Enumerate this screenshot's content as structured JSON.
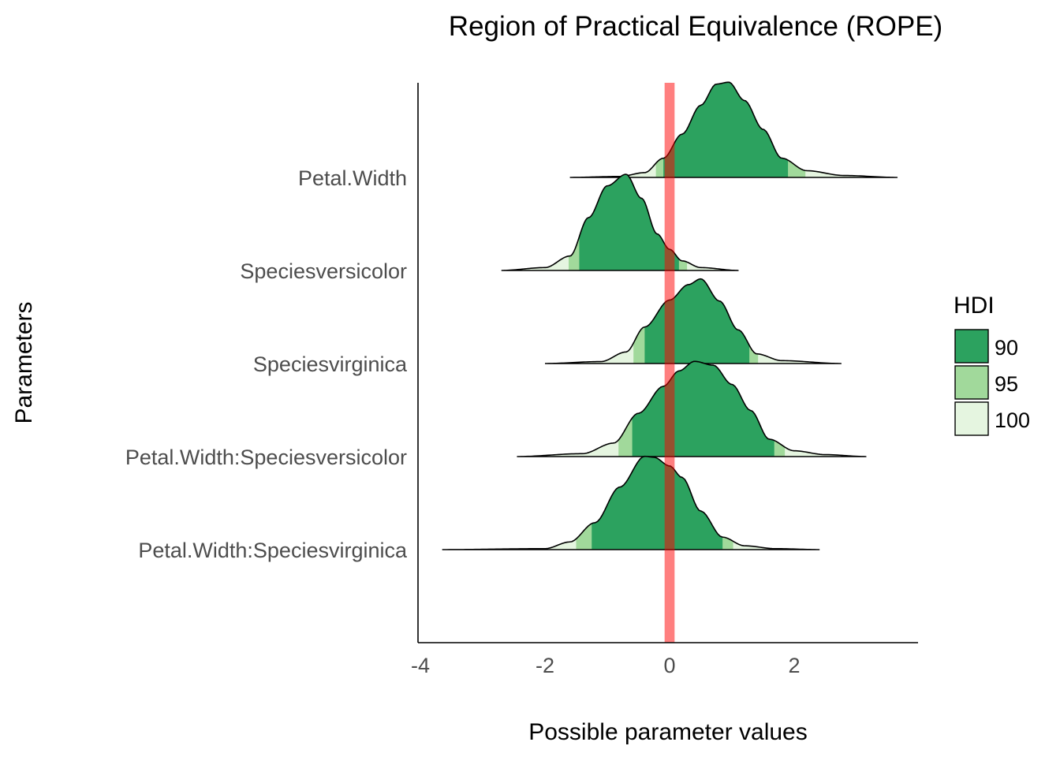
{
  "chart_data": {
    "type": "ridgeline",
    "title": "Region of Practical Equivalence (ROPE)",
    "xlabel": "Possible parameter values",
    "ylabel": "Parameters",
    "xlim": [
      -4.0,
      4.0
    ],
    "x_ticks": [
      -4,
      -2,
      0,
      2
    ],
    "x_tick_labels": [
      "-4",
      "-2",
      "0",
      "2"
    ],
    "grid": false,
    "rope": {
      "low": -0.08,
      "high": 0.08,
      "color": "#ff0000",
      "opacity": 0.5
    },
    "legend": {
      "title": "HDI",
      "position": "right",
      "items": [
        {
          "label": "90",
          "color": "#2ca25f"
        },
        {
          "label": "95",
          "color": "#a1d99b"
        },
        {
          "label": "100",
          "color": "#e5f5e0"
        }
      ]
    },
    "parameters": [
      {
        "name": "Petal.Width",
        "min": -1.6,
        "max": 3.65,
        "mode": 0.88,
        "sd": 0.62,
        "peak": 1.0,
        "hdi95": [
          -0.22,
          2.18
        ],
        "hdi90": [
          -0.1,
          1.9
        ],
        "density": [
          [
            -1.6,
            0.0
          ],
          [
            -0.8,
            0.01
          ],
          [
            -0.4,
            0.05
          ],
          [
            -0.1,
            0.2
          ],
          [
            0.2,
            0.45
          ],
          [
            0.5,
            0.75
          ],
          [
            0.75,
            0.97
          ],
          [
            0.95,
            0.99
          ],
          [
            1.2,
            0.8
          ],
          [
            1.5,
            0.5
          ],
          [
            1.8,
            0.2
          ],
          [
            2.2,
            0.07
          ],
          [
            2.8,
            0.02
          ],
          [
            3.65,
            0.0
          ]
        ]
      },
      {
        "name": "Speciesversicolor",
        "min": -2.7,
        "max": 1.1,
        "mode": -0.68,
        "sd": 0.45,
        "peak": 1.0,
        "hdi95": [
          -1.62,
          0.28
        ],
        "hdi90": [
          -1.45,
          0.15
        ],
        "density": [
          [
            -2.7,
            0.0
          ],
          [
            -2.0,
            0.03
          ],
          [
            -1.6,
            0.15
          ],
          [
            -1.3,
            0.55
          ],
          [
            -1.0,
            0.88
          ],
          [
            -0.7,
            1.0
          ],
          [
            -0.45,
            0.75
          ],
          [
            -0.2,
            0.38
          ],
          [
            0.0,
            0.22
          ],
          [
            0.2,
            0.1
          ],
          [
            0.5,
            0.03
          ],
          [
            1.1,
            0.0
          ]
        ]
      },
      {
        "name": "Speciesvirginica",
        "min": -2.0,
        "max": 2.75,
        "mode": 0.48,
        "sd": 0.46,
        "peak": 0.9,
        "hdi95": [
          -0.58,
          1.42
        ],
        "hdi90": [
          -0.4,
          1.28
        ],
        "density": [
          [
            -2.0,
            0.0
          ],
          [
            -1.1,
            0.02
          ],
          [
            -0.7,
            0.12
          ],
          [
            -0.4,
            0.38
          ],
          [
            0.0,
            0.66
          ],
          [
            0.3,
            0.82
          ],
          [
            0.5,
            0.88
          ],
          [
            0.8,
            0.65
          ],
          [
            1.1,
            0.35
          ],
          [
            1.4,
            0.1
          ],
          [
            1.8,
            0.03
          ],
          [
            2.75,
            0.0
          ]
        ]
      },
      {
        "name": "Petal.Width:Speciesversicolor",
        "min": -2.45,
        "max": 3.15,
        "mode": 0.42,
        "sd": 0.62,
        "peak": 1.0,
        "hdi95": [
          -0.82,
          1.85
        ],
        "hdi90": [
          -0.6,
          1.68
        ],
        "density": [
          [
            -2.45,
            0.0
          ],
          [
            -1.4,
            0.03
          ],
          [
            -0.9,
            0.14
          ],
          [
            -0.5,
            0.45
          ],
          [
            -0.1,
            0.73
          ],
          [
            0.15,
            0.89
          ],
          [
            0.4,
            0.99
          ],
          [
            0.7,
            0.95
          ],
          [
            1.0,
            0.75
          ],
          [
            1.3,
            0.48
          ],
          [
            1.6,
            0.18
          ],
          [
            2.0,
            0.06
          ],
          [
            2.5,
            0.02
          ],
          [
            3.15,
            0.0
          ]
        ]
      },
      {
        "name": "Petal.Width:Speciesvirginica",
        "min": -3.65,
        "max": 2.4,
        "mode": -0.35,
        "sd": 0.62,
        "peak": 1.0,
        "hdi95": [
          -1.5,
          1.02
        ],
        "hdi90": [
          -1.25,
          0.85
        ],
        "density": [
          [
            -3.65,
            0.0
          ],
          [
            -2.0,
            0.01
          ],
          [
            -1.6,
            0.08
          ],
          [
            -1.2,
            0.28
          ],
          [
            -0.8,
            0.65
          ],
          [
            -0.4,
            0.97
          ],
          [
            -0.25,
            0.96
          ],
          [
            0.0,
            0.87
          ],
          [
            0.2,
            0.75
          ],
          [
            0.5,
            0.4
          ],
          [
            0.85,
            0.13
          ],
          [
            1.2,
            0.04
          ],
          [
            1.7,
            0.01
          ],
          [
            2.4,
            0.0
          ]
        ]
      }
    ]
  }
}
